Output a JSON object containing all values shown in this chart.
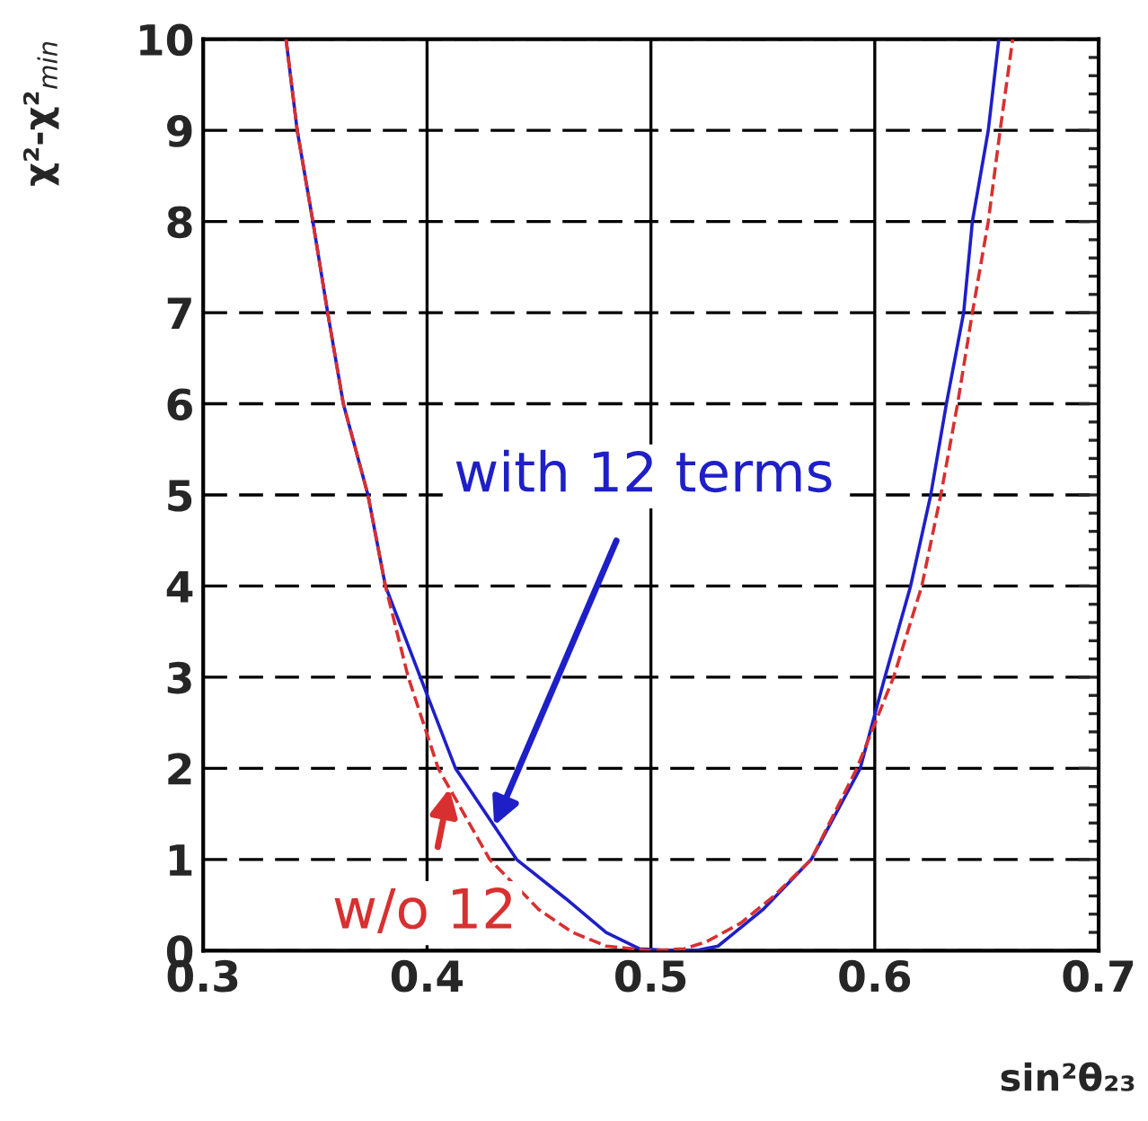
{
  "chart_data": {
    "type": "line",
    "xlabel": "sin²θ₂₃",
    "ylabel": "χ²-χ²$_{min}$",
    "xlim": [
      0.3,
      0.7
    ],
    "ylim": [
      0,
      10
    ],
    "xticks": [
      0.3,
      0.4,
      0.5,
      0.6,
      0.7
    ],
    "yticks": [
      0,
      1,
      2,
      3,
      4,
      5,
      6,
      7,
      8,
      9,
      10
    ],
    "grid": true,
    "series": [
      {
        "color": "#1f1fc8",
        "line_style": "solid",
        "x": [
          0.337,
          0.342,
          0.349,
          0.3556,
          0.3626,
          0.3736,
          0.3814,
          0.397,
          0.4127,
          0.44,
          0.462,
          0.48,
          0.495,
          0.51,
          0.52,
          0.53,
          0.535,
          0.55,
          0.5716,
          0.5935,
          0.6045,
          0.616,
          0.625,
          0.632,
          0.6397,
          0.6436,
          0.6507,
          0.6554
        ],
        "values": [
          10,
          9,
          8,
          7,
          6,
          5,
          4,
          3,
          2,
          1,
          0.57,
          0.2,
          0.02,
          0,
          0,
          0.05,
          0.15,
          0.45,
          1,
          2,
          3,
          4,
          5,
          6,
          7,
          8,
          9,
          10
        ]
      },
      {
        "color": "#d83030",
        "line_style": "dashed",
        "x": [
          0.337,
          0.342,
          0.349,
          0.3556,
          0.3626,
          0.3736,
          0.3814,
          0.3916,
          0.405,
          0.428,
          0.45,
          0.465,
          0.48,
          0.5,
          0.515,
          0.525,
          0.54,
          0.555,
          0.5716,
          0.592,
          0.6084,
          0.621,
          0.6295,
          0.637,
          0.6436,
          0.6507,
          0.656,
          0.6616
        ],
        "values": [
          10,
          9,
          8,
          7,
          6,
          5,
          4,
          3,
          2,
          1,
          0.45,
          0.2,
          0.05,
          0,
          0.02,
          0.1,
          0.3,
          0.6,
          1,
          2,
          3,
          4,
          5,
          6,
          7,
          8,
          9,
          10
        ]
      }
    ],
    "annotations": [
      {
        "text": "with 12 terms",
        "x": 0.43,
        "y": 1.37
      },
      {
        "text": "w/o 12",
        "x": 0.41,
        "y": 1.78
      }
    ]
  }
}
